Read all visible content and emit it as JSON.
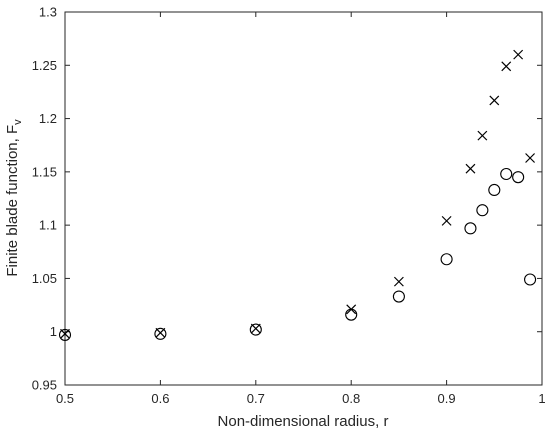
{
  "chart_data": {
    "type": "scatter",
    "title": "",
    "xlabel": "Non-dimensional radius, r",
    "ylabel_main": "Finite blade function, F",
    "ylabel_sub": "v",
    "xlim": [
      0.5,
      1.0
    ],
    "ylim": [
      0.95,
      1.3
    ],
    "x_ticks": [
      0.5,
      0.6,
      0.7,
      0.8,
      0.9,
      1.0
    ],
    "x_tick_labels": [
      "0.5",
      "0.6",
      "0.7",
      "0.8",
      "0.9",
      "1"
    ],
    "y_ticks": [
      0.95,
      1.0,
      1.05,
      1.1,
      1.15,
      1.2,
      1.25,
      1.3
    ],
    "y_tick_labels": [
      "0.95",
      "1",
      "1.05",
      "1.1",
      "1.15",
      "1.2",
      "1.25",
      "1.3"
    ],
    "grid": false,
    "legend": "none",
    "series": [
      {
        "marker": "x",
        "color": "#000000",
        "points": [
          {
            "x": 0.5,
            "y": 0.998
          },
          {
            "x": 0.6,
            "y": 0.999
          },
          {
            "x": 0.7,
            "y": 1.003
          },
          {
            "x": 0.8,
            "y": 1.021
          },
          {
            "x": 0.85,
            "y": 1.047
          },
          {
            "x": 0.9,
            "y": 1.104
          },
          {
            "x": 0.925,
            "y": 1.153
          },
          {
            "x": 0.9375,
            "y": 1.184
          },
          {
            "x": 0.95,
            "y": 1.217
          },
          {
            "x": 0.9625,
            "y": 1.249
          },
          {
            "x": 0.975,
            "y": 1.26
          },
          {
            "x": 0.9875,
            "y": 1.163
          }
        ]
      },
      {
        "marker": "circle",
        "color": "#000000",
        "points": [
          {
            "x": 0.5,
            "y": 0.997
          },
          {
            "x": 0.6,
            "y": 0.998
          },
          {
            "x": 0.7,
            "y": 1.002
          },
          {
            "x": 0.8,
            "y": 1.016
          },
          {
            "x": 0.85,
            "y": 1.033
          },
          {
            "x": 0.9,
            "y": 1.068
          },
          {
            "x": 0.925,
            "y": 1.097
          },
          {
            "x": 0.9375,
            "y": 1.114
          },
          {
            "x": 0.95,
            "y": 1.133
          },
          {
            "x": 0.9625,
            "y": 1.148
          },
          {
            "x": 0.975,
            "y": 1.145
          },
          {
            "x": 0.9875,
            "y": 1.049
          }
        ]
      }
    ]
  }
}
